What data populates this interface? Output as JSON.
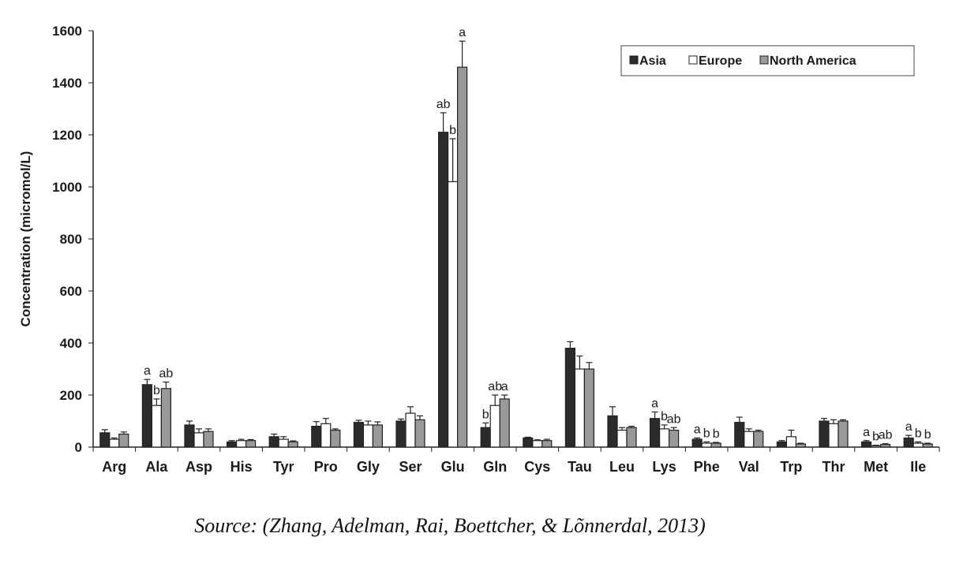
{
  "chart_data": {
    "type": "bar",
    "title": "",
    "xlabel": "",
    "ylabel": "Concentration (micromol/L)",
    "ylim": [
      0,
      1600
    ],
    "yticks": [
      0,
      200,
      400,
      600,
      800,
      1000,
      1200,
      1400,
      1600
    ],
    "grid": false,
    "legend_position": "top-right",
    "categories": [
      "Arg",
      "Ala",
      "Asp",
      "His",
      "Tyr",
      "Pro",
      "Gly",
      "Ser",
      "Glu",
      "Gln",
      "Cys",
      "Tau",
      "Leu",
      "Lys",
      "Phe",
      "Val",
      "Trp",
      "Thr",
      "Met",
      "Ile"
    ],
    "series": [
      {
        "name": "Asia",
        "color": "#2b2b2b",
        "values": [
          55,
          240,
          85,
          20,
          40,
          80,
          95,
          100,
          1210,
          75,
          35,
          380,
          120,
          110,
          30,
          95,
          20,
          100,
          20,
          35
        ],
        "errors": [
          12,
          20,
          15,
          5,
          10,
          18,
          8,
          8,
          75,
          18,
          3,
          25,
          35,
          25,
          5,
          20,
          5,
          10,
          5,
          10
        ]
      },
      {
        "name": "Europe",
        "color": "#ffffff",
        "values": [
          30,
          160,
          55,
          25,
          30,
          90,
          85,
          130,
          1020,
          160,
          25,
          300,
          65,
          70,
          15,
          60,
          40,
          90,
          5,
          15
        ],
        "errors": [
          5,
          25,
          15,
          5,
          10,
          20,
          15,
          25,
          165,
          40,
          3,
          50,
          10,
          15,
          5,
          10,
          25,
          15,
          2,
          5
        ]
      },
      {
        "name": "North America",
        "color": "#999999",
        "values": [
          50,
          225,
          60,
          25,
          20,
          65,
          85,
          105,
          1460,
          185,
          25,
          300,
          75,
          65,
          15,
          60,
          12,
          100,
          10,
          12
        ],
        "errors": [
          8,
          25,
          10,
          4,
          4,
          5,
          12,
          15,
          100,
          15,
          5,
          25,
          5,
          10,
          3,
          5,
          3,
          5,
          3,
          3
        ]
      }
    ],
    "annotations": [
      {
        "category": "Ala",
        "letters": [
          "a",
          "b",
          "ab"
        ]
      },
      {
        "category": "Glu",
        "letters": [
          "ab",
          "b",
          "a"
        ]
      },
      {
        "category": "Gln",
        "letters": [
          "b",
          "ab",
          "a"
        ]
      },
      {
        "category": "Lys",
        "letters": [
          "a",
          "b",
          "ab"
        ]
      },
      {
        "category": "Phe",
        "letters": [
          "a",
          "b",
          "b"
        ]
      },
      {
        "category": "Met",
        "letters": [
          "a",
          "b",
          "ab"
        ]
      },
      {
        "category": "Ile",
        "letters": [
          "a",
          "b",
          "b"
        ]
      }
    ]
  },
  "source": "Source: (Zhang, Adelman, Rai, Boettcher, & Lõnnerdal, 2013)"
}
